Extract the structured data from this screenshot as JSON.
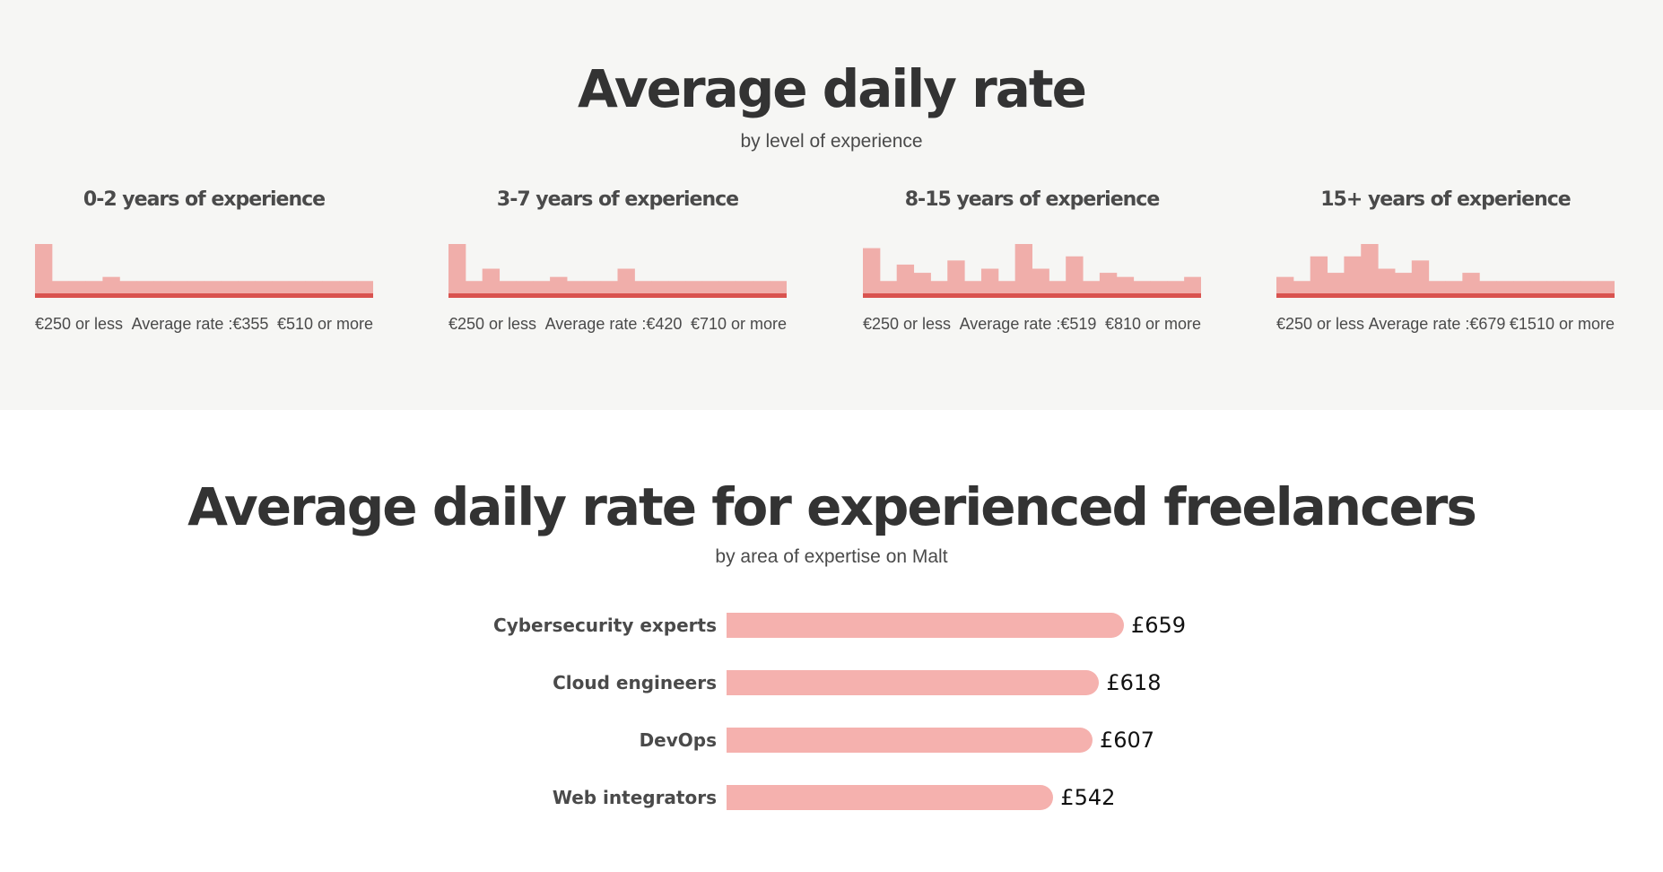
{
  "section1": {
    "title": "Average daily rate",
    "subtitle": "by level of experience"
  },
  "section2": {
    "title": "Average daily rate for experienced freelancers",
    "subtitle": "by area of expertise on Malt"
  },
  "colors": {
    "bar_light": "#f0aeaa",
    "baseline": "#d9534f",
    "expertise_bar": "#f5b1ae"
  },
  "chart_data": [
    {
      "type": "bar",
      "title": "0-2 years of experience",
      "min_label": "€250 or less",
      "avg_label": "Average rate :€355",
      "max_label": "€510 or more",
      "values": [
        12,
        3,
        3,
        3,
        4,
        3,
        3,
        3,
        3,
        3,
        3,
        3,
        3,
        3,
        3,
        3,
        3,
        3,
        3,
        3
      ]
    },
    {
      "type": "bar",
      "title": "3-7 years of experience",
      "min_label": "€250 or less",
      "avg_label": "Average rate :€420",
      "max_label": "€710 or more",
      "values": [
        12,
        3,
        6,
        3,
        3,
        3,
        4,
        3,
        3,
        3,
        6,
        3,
        3,
        3,
        3,
        3,
        3,
        3,
        3,
        3
      ]
    },
    {
      "type": "bar",
      "title": "8-15 years of experience",
      "min_label": "€250 or less",
      "avg_label": "Average rate :€519",
      "max_label": "€810 or more",
      "values": [
        11,
        3,
        7,
        5,
        3,
        8,
        3,
        6,
        3,
        12,
        6,
        3,
        9,
        3,
        5,
        4,
        3,
        3,
        3,
        4
      ]
    },
    {
      "type": "bar",
      "title": "15+ years of experience",
      "min_label": "€250 or less",
      "avg_label": "Average rate :€679",
      "max_label": "€1510 or more",
      "values": [
        4,
        3,
        9,
        5,
        9,
        12,
        6,
        5,
        8,
        3,
        3,
        5,
        3,
        3,
        3,
        3,
        3,
        3,
        3,
        3
      ]
    },
    {
      "type": "bar",
      "orientation": "horizontal",
      "categories": [
        "Cybersecurity experts",
        "Cloud engineers",
        "DevOps",
        "Web integrators"
      ],
      "values": [
        659,
        618,
        607,
        542
      ],
      "value_labels": [
        "£659",
        "£618",
        "£607",
        "£542"
      ]
    }
  ]
}
